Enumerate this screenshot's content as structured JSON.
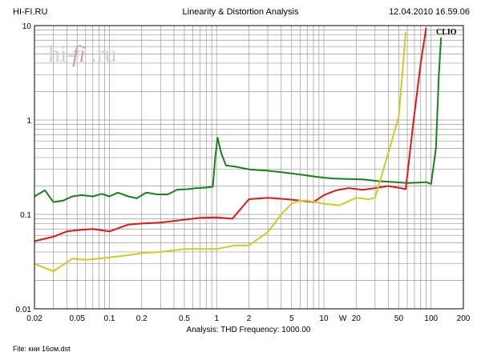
{
  "header": {
    "left": "HI-FI.RU",
    "center": "Linearity & Distortion Analysis",
    "right": "12.04.2010 16.59.06"
  },
  "watermark": {
    "left": "hi-",
    "middle": "fi",
    "right": ".ru"
  },
  "brand": "CLIO",
  "footer": {
    "analysis": "Analysis: THD   Frequency: 1000.00",
    "file": "File: кни 16ом.dst"
  },
  "chart_data": {
    "type": "line",
    "x_scale": "log",
    "y_scale": "log",
    "xlim": [
      0.02,
      200
    ],
    "ylim": [
      0.01,
      10
    ],
    "grid": true,
    "x_ticks": [
      "0.02",
      "0.05",
      "0.1",
      "0.2",
      "0.5",
      "1",
      "2",
      "5",
      "10",
      "20",
      "50",
      "100",
      "200"
    ],
    "x_tick_values": [
      0.02,
      0.05,
      0.1,
      0.2,
      0.5,
      1,
      2,
      5,
      10,
      20,
      50,
      100,
      200
    ],
    "x_unit_label": "W",
    "x_unit_at": 15,
    "y_ticks": [
      "0.01",
      "0.1",
      "1",
      "10"
    ],
    "y_tick_values": [
      0.01,
      0.1,
      1,
      10
    ],
    "series": [
      {
        "color": "#1a801a",
        "x": [
          0.02,
          0.025,
          0.03,
          0.037,
          0.045,
          0.055,
          0.07,
          0.085,
          0.1,
          0.12,
          0.15,
          0.18,
          0.22,
          0.28,
          0.35,
          0.43,
          0.53,
          0.65,
          0.78,
          0.92,
          0.97,
          1.02,
          1.1,
          1.22,
          1.5,
          2.0,
          3.0,
          4.0,
          6.0,
          8.5,
          12.0,
          17.0,
          23.0,
          32.0,
          45.0,
          60.0,
          75.0,
          90.0,
          100.0,
          111.0,
          118.0,
          124.0
        ],
        "y": [
          0.155,
          0.18,
          0.135,
          0.14,
          0.155,
          0.16,
          0.155,
          0.165,
          0.155,
          0.17,
          0.155,
          0.148,
          0.17,
          0.163,
          0.163,
          0.183,
          0.185,
          0.19,
          0.192,
          0.196,
          0.4,
          0.65,
          0.45,
          0.33,
          0.32,
          0.3,
          0.29,
          0.28,
          0.265,
          0.25,
          0.24,
          0.237,
          0.235,
          0.225,
          0.22,
          0.215,
          0.217,
          0.22,
          0.21,
          0.5,
          3.0,
          7.5
        ]
      },
      {
        "color": "#e01818",
        "x": [
          0.02,
          0.03,
          0.04,
          0.05,
          0.07,
          0.1,
          0.15,
          0.2,
          0.3,
          0.5,
          0.7,
          1.0,
          1.4,
          2.0,
          3.0,
          4.5,
          6.0,
          8.0,
          10.0,
          13.0,
          17.0,
          23.0,
          30.0,
          40.0,
          52.0,
          58.0,
          68.0,
          80.0,
          90.0
        ],
        "y": [
          0.052,
          0.058,
          0.066,
          0.068,
          0.07,
          0.066,
          0.078,
          0.08,
          0.082,
          0.088,
          0.092,
          0.093,
          0.09,
          0.145,
          0.15,
          0.145,
          0.14,
          0.135,
          0.16,
          0.18,
          0.19,
          0.182,
          0.19,
          0.2,
          0.19,
          0.185,
          0.9,
          4.0,
          9.5
        ]
      },
      {
        "color": "#cccc22",
        "x": [
          0.02,
          0.025,
          0.03,
          0.035,
          0.045,
          0.06,
          0.08,
          0.1,
          0.15,
          0.2,
          0.3,
          0.5,
          0.7,
          1.0,
          1.5,
          2.0,
          3.0,
          4.0,
          5.0,
          6.0,
          7.0,
          10.0,
          14.0,
          20.0,
          26.0,
          30.0,
          40.0,
          50.0,
          58.0
        ],
        "y": [
          0.03,
          0.027,
          0.025,
          0.028,
          0.034,
          0.033,
          0.034,
          0.035,
          0.037,
          0.039,
          0.04,
          0.043,
          0.043,
          0.043,
          0.047,
          0.047,
          0.065,
          0.1,
          0.13,
          0.14,
          0.14,
          0.13,
          0.125,
          0.15,
          0.145,
          0.15,
          0.45,
          1.1,
          8.5
        ]
      }
    ]
  }
}
